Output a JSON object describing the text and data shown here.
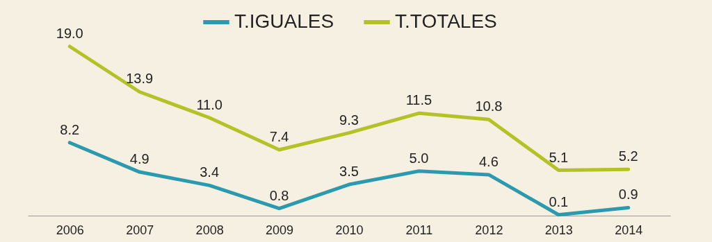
{
  "chart_data": {
    "type": "line",
    "categories": [
      "2006",
      "2007",
      "2008",
      "2009",
      "2010",
      "2011",
      "2012",
      "2013",
      "2014"
    ],
    "series": [
      {
        "name": "T.IGUALES",
        "color": "#2b9aae",
        "values": [
          8.2,
          4.9,
          3.4,
          0.8,
          3.5,
          5.0,
          4.6,
          0.1,
          0.9
        ],
        "value_labels": [
          "8.2",
          "4.9",
          "3.4",
          "0.8",
          "3.5",
          "5.0",
          "4.6",
          "0.1",
          "0.9"
        ]
      },
      {
        "name": "T.TOTALES",
        "color": "#b3c226",
        "values": [
          19.0,
          13.9,
          11.0,
          7.4,
          9.3,
          11.5,
          10.8,
          5.1,
          5.2
        ],
        "value_labels": [
          "19.0",
          "13.9",
          "11.0",
          "7.4",
          "9.3",
          "11.5",
          "10.8",
          "5.1",
          "5.2"
        ]
      }
    ],
    "legend": "top",
    "grid": false,
    "marker": "none",
    "line_style": "solid"
  }
}
